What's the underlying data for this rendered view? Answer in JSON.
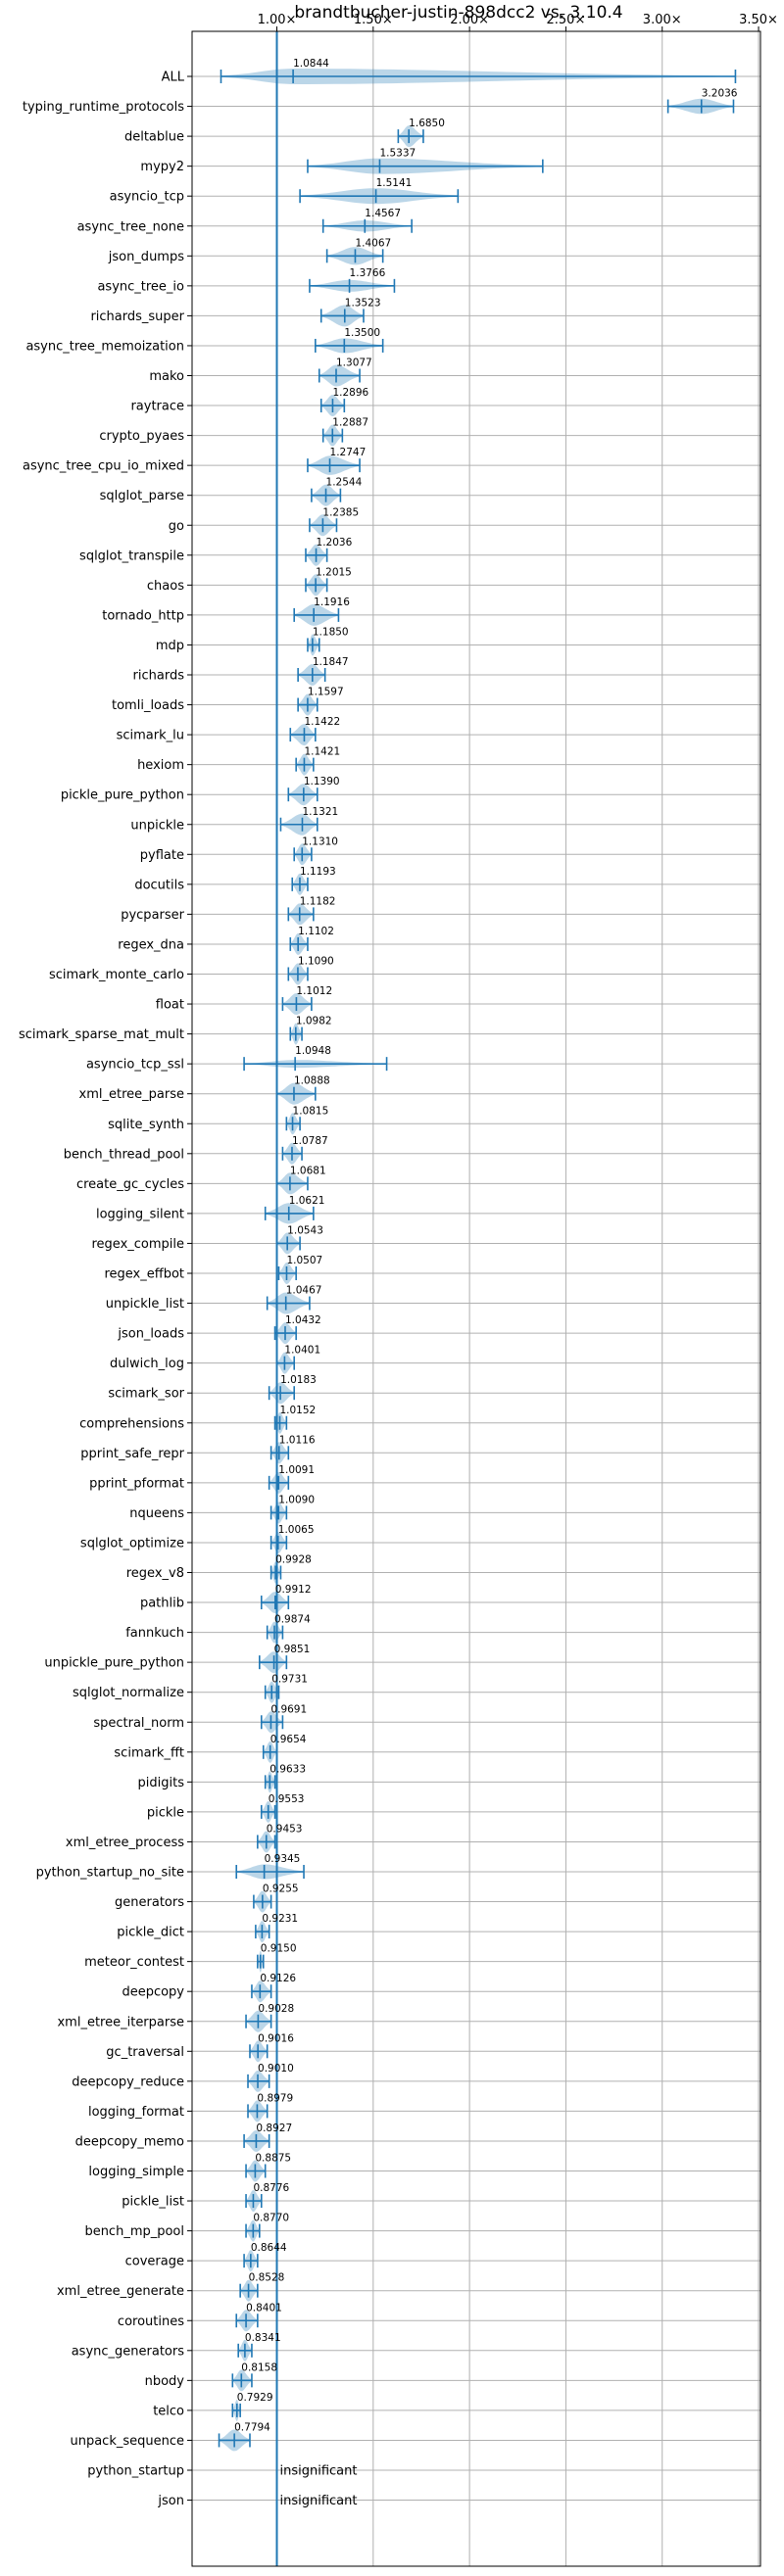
{
  "chart_data": {
    "type": "violin",
    "title": "brandtbucher-justin-898dcc2 vs. 3.10.4",
    "orientation": "horizontal",
    "xlim": [
      0.56,
      3.51
    ],
    "x_ticks": [
      1.0,
      1.5,
      2.0,
      2.5,
      3.0,
      3.5
    ],
    "x_tick_labels": [
      "1.00×",
      "1.50×",
      "2.00×",
      "2.50×",
      "3.00×",
      "3.50×"
    ],
    "x_tick_position": "top",
    "reference_line": 1.0,
    "grid": true,
    "insignificant_label": "insignificant",
    "benchmarks": [
      {
        "name": "ALL",
        "median": 1.0844,
        "label": "1.0844",
        "min": 0.71,
        "max": 3.38
      },
      {
        "name": "typing_runtime_protocols",
        "median": 3.2036,
        "label": "3.2036",
        "min": 3.03,
        "max": 3.37
      },
      {
        "name": "deltablue",
        "median": 1.685,
        "label": "1.6850",
        "min": 1.63,
        "max": 1.76
      },
      {
        "name": "mypy2",
        "median": 1.5337,
        "label": "1.5337",
        "min": 1.16,
        "max": 2.38
      },
      {
        "name": "asyncio_tcp",
        "median": 1.5141,
        "label": "1.5141",
        "min": 1.12,
        "max": 1.94
      },
      {
        "name": "async_tree_none",
        "median": 1.4567,
        "label": "1.4567",
        "min": 1.24,
        "max": 1.7
      },
      {
        "name": "json_dumps",
        "median": 1.4067,
        "label": "1.4067",
        "min": 1.26,
        "max": 1.55
      },
      {
        "name": "async_tree_io",
        "median": 1.3766,
        "label": "1.3766",
        "min": 1.17,
        "max": 1.61
      },
      {
        "name": "richards_super",
        "median": 1.3523,
        "label": "1.3523",
        "min": 1.23,
        "max": 1.45
      },
      {
        "name": "async_tree_memoization",
        "median": 1.35,
        "label": "1.3500",
        "min": 1.2,
        "max": 1.55
      },
      {
        "name": "mako",
        "median": 1.3077,
        "label": "1.3077",
        "min": 1.22,
        "max": 1.43
      },
      {
        "name": "raytrace",
        "median": 1.2896,
        "label": "1.2896",
        "min": 1.23,
        "max": 1.35
      },
      {
        "name": "crypto_pyaes",
        "median": 1.2887,
        "label": "1.2887",
        "min": 1.24,
        "max": 1.34
      },
      {
        "name": "async_tree_cpu_io_mixed",
        "median": 1.2747,
        "label": "1.2747",
        "min": 1.16,
        "max": 1.43
      },
      {
        "name": "sqlglot_parse",
        "median": 1.2544,
        "label": "1.2544",
        "min": 1.18,
        "max": 1.33
      },
      {
        "name": "go",
        "median": 1.2385,
        "label": "1.2385",
        "min": 1.17,
        "max": 1.31
      },
      {
        "name": "sqlglot_transpile",
        "median": 1.2036,
        "label": "1.2036",
        "min": 1.15,
        "max": 1.26
      },
      {
        "name": "chaos",
        "median": 1.2015,
        "label": "1.2015",
        "min": 1.15,
        "max": 1.26
      },
      {
        "name": "tornado_http",
        "median": 1.1916,
        "label": "1.1916",
        "min": 1.09,
        "max": 1.32
      },
      {
        "name": "mdp",
        "median": 1.185,
        "label": "1.1850",
        "min": 1.16,
        "max": 1.22
      },
      {
        "name": "richards",
        "median": 1.1847,
        "label": "1.1847",
        "min": 1.11,
        "max": 1.25
      },
      {
        "name": "tomli_loads",
        "median": 1.1597,
        "label": "1.1597",
        "min": 1.11,
        "max": 1.21
      },
      {
        "name": "scimark_lu",
        "median": 1.1422,
        "label": "1.1422",
        "min": 1.07,
        "max": 1.2
      },
      {
        "name": "hexiom",
        "median": 1.1421,
        "label": "1.1421",
        "min": 1.1,
        "max": 1.19
      },
      {
        "name": "pickle_pure_python",
        "median": 1.139,
        "label": "1.1390",
        "min": 1.06,
        "max": 1.21
      },
      {
        "name": "unpickle",
        "median": 1.1321,
        "label": "1.1321",
        "min": 1.02,
        "max": 1.21
      },
      {
        "name": "pyflate",
        "median": 1.131,
        "label": "1.1310",
        "min": 1.09,
        "max": 1.18
      },
      {
        "name": "docutils",
        "median": 1.1193,
        "label": "1.1193",
        "min": 1.08,
        "max": 1.16
      },
      {
        "name": "pycparser",
        "median": 1.1182,
        "label": "1.1182",
        "min": 1.06,
        "max": 1.19
      },
      {
        "name": "regex_dna",
        "median": 1.1102,
        "label": "1.1102",
        "min": 1.07,
        "max": 1.16
      },
      {
        "name": "scimark_monte_carlo",
        "median": 1.109,
        "label": "1.1090",
        "min": 1.06,
        "max": 1.16
      },
      {
        "name": "float",
        "median": 1.1012,
        "label": "1.1012",
        "min": 1.03,
        "max": 1.18
      },
      {
        "name": "scimark_sparse_mat_mult",
        "median": 1.0982,
        "label": "1.0982",
        "min": 1.07,
        "max": 1.13
      },
      {
        "name": "asyncio_tcp_ssl",
        "median": 1.0948,
        "label": "1.0948",
        "min": 0.83,
        "max": 1.57
      },
      {
        "name": "xml_etree_parse",
        "median": 1.0888,
        "label": "1.0888",
        "min": 1.0,
        "max": 1.2
      },
      {
        "name": "sqlite_synth",
        "median": 1.0815,
        "label": "1.0815",
        "min": 1.05,
        "max": 1.12
      },
      {
        "name": "bench_thread_pool",
        "median": 1.0787,
        "label": "1.0787",
        "min": 1.03,
        "max": 1.13
      },
      {
        "name": "create_gc_cycles",
        "median": 1.0681,
        "label": "1.0681",
        "min": 1.0,
        "max": 1.16
      },
      {
        "name": "logging_silent",
        "median": 1.0621,
        "label": "1.0621",
        "min": 0.94,
        "max": 1.19
      },
      {
        "name": "regex_compile",
        "median": 1.0543,
        "label": "1.0543",
        "min": 1.0,
        "max": 1.12
      },
      {
        "name": "regex_effbot",
        "median": 1.0507,
        "label": "1.0507",
        "min": 1.01,
        "max": 1.1
      },
      {
        "name": "unpickle_list",
        "median": 1.0467,
        "label": "1.0467",
        "min": 0.95,
        "max": 1.17
      },
      {
        "name": "json_loads",
        "median": 1.0432,
        "label": "1.0432",
        "min": 0.99,
        "max": 1.1
      },
      {
        "name": "dulwich_log",
        "median": 1.0401,
        "label": "1.0401",
        "min": 1.0,
        "max": 1.09
      },
      {
        "name": "scimark_sor",
        "median": 1.0183,
        "label": "1.0183",
        "min": 0.96,
        "max": 1.09
      },
      {
        "name": "comprehensions",
        "median": 1.0152,
        "label": "1.0152",
        "min": 0.99,
        "max": 1.05
      },
      {
        "name": "pprint_safe_repr",
        "median": 1.0116,
        "label": "1.0116",
        "min": 0.97,
        "max": 1.06
      },
      {
        "name": "pprint_pformat",
        "median": 1.0091,
        "label": "1.0091",
        "min": 0.96,
        "max": 1.06
      },
      {
        "name": "nqueens",
        "median": 1.009,
        "label": "1.0090",
        "min": 0.97,
        "max": 1.05
      },
      {
        "name": "sqlglot_optimize",
        "median": 1.0065,
        "label": "1.0065",
        "min": 0.97,
        "max": 1.05
      },
      {
        "name": "regex_v8",
        "median": 0.9928,
        "label": "0.9928",
        "min": 0.97,
        "max": 1.02
      },
      {
        "name": "pathlib",
        "median": 0.9912,
        "label": "0.9912",
        "min": 0.92,
        "max": 1.06
      },
      {
        "name": "fannkuch",
        "median": 0.9874,
        "label": "0.9874",
        "min": 0.95,
        "max": 1.03
      },
      {
        "name": "unpickle_pure_python",
        "median": 0.9851,
        "label": "0.9851",
        "min": 0.91,
        "max": 1.05
      },
      {
        "name": "sqlglot_normalize",
        "median": 0.9731,
        "label": "0.9731",
        "min": 0.94,
        "max": 1.01
      },
      {
        "name": "spectral_norm",
        "median": 0.9691,
        "label": "0.9691",
        "min": 0.92,
        "max": 1.03
      },
      {
        "name": "scimark_fft",
        "median": 0.9654,
        "label": "0.9654",
        "min": 0.93,
        "max": 1.0
      },
      {
        "name": "pidigits",
        "median": 0.9633,
        "label": "0.9633",
        "min": 0.94,
        "max": 0.99
      },
      {
        "name": "pickle",
        "median": 0.9553,
        "label": "0.9553",
        "min": 0.92,
        "max": 0.99
      },
      {
        "name": "xml_etree_process",
        "median": 0.9453,
        "label": "0.9453",
        "min": 0.9,
        "max": 0.99
      },
      {
        "name": "python_startup_no_site",
        "median": 0.9345,
        "label": "0.9345",
        "min": 0.79,
        "max": 1.14
      },
      {
        "name": "generators",
        "median": 0.9255,
        "label": "0.9255",
        "min": 0.88,
        "max": 0.97
      },
      {
        "name": "pickle_dict",
        "median": 0.9231,
        "label": "0.9231",
        "min": 0.89,
        "max": 0.96
      },
      {
        "name": "meteor_contest",
        "median": 0.915,
        "label": "0.9150",
        "min": 0.9,
        "max": 0.93
      },
      {
        "name": "deepcopy",
        "median": 0.9126,
        "label": "0.9126",
        "min": 0.87,
        "max": 0.97
      },
      {
        "name": "xml_etree_iterparse",
        "median": 0.9028,
        "label": "0.9028",
        "min": 0.84,
        "max": 0.97
      },
      {
        "name": "gc_traversal",
        "median": 0.9016,
        "label": "0.9016",
        "min": 0.86,
        "max": 0.95
      },
      {
        "name": "deepcopy_reduce",
        "median": 0.901,
        "label": "0.9010",
        "min": 0.85,
        "max": 0.96
      },
      {
        "name": "logging_format",
        "median": 0.8979,
        "label": "0.8979",
        "min": 0.85,
        "max": 0.95
      },
      {
        "name": "deepcopy_memo",
        "median": 0.8927,
        "label": "0.8927",
        "min": 0.83,
        "max": 0.96
      },
      {
        "name": "logging_simple",
        "median": 0.8875,
        "label": "0.8875",
        "min": 0.84,
        "max": 0.94
      },
      {
        "name": "pickle_list",
        "median": 0.8776,
        "label": "0.8776",
        "min": 0.84,
        "max": 0.92
      },
      {
        "name": "bench_mp_pool",
        "median": 0.877,
        "label": "0.8770",
        "min": 0.84,
        "max": 0.91
      },
      {
        "name": "coverage",
        "median": 0.8644,
        "label": "0.8644",
        "min": 0.83,
        "max": 0.9
      },
      {
        "name": "xml_etree_generate",
        "median": 0.8528,
        "label": "0.8528",
        "min": 0.81,
        "max": 0.9
      },
      {
        "name": "coroutines",
        "median": 0.8401,
        "label": "0.8401",
        "min": 0.79,
        "max": 0.9
      },
      {
        "name": "async_generators",
        "median": 0.8341,
        "label": "0.8341",
        "min": 0.8,
        "max": 0.87
      },
      {
        "name": "nbody",
        "median": 0.8158,
        "label": "0.8158",
        "min": 0.77,
        "max": 0.87
      },
      {
        "name": "telco",
        "median": 0.7929,
        "label": "0.7929",
        "min": 0.77,
        "max": 0.81
      },
      {
        "name": "unpack_sequence",
        "median": 0.7794,
        "label": "0.7794",
        "min": 0.7,
        "max": 0.86
      },
      {
        "name": "python_startup",
        "median": null,
        "label": null,
        "min": null,
        "max": null,
        "insignificant": true
      },
      {
        "name": "json",
        "median": null,
        "label": null,
        "min": null,
        "max": null,
        "insignificant": true
      }
    ]
  },
  "colors": {
    "violin": "#1f77b4",
    "line": "#1f77b4",
    "grid": "#b0b0b0"
  }
}
